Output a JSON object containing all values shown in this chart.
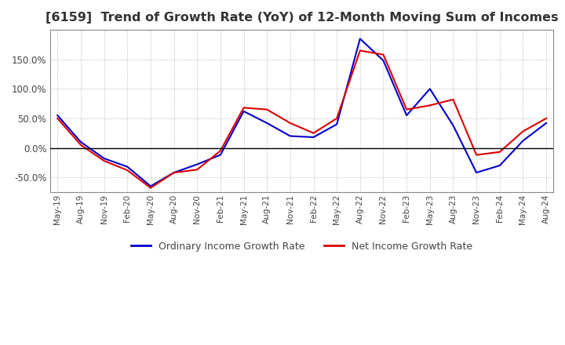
{
  "title": "[6159]  Trend of Growth Rate (YoY) of 12-Month Moving Sum of Incomes",
  "title_fontsize": 11.5,
  "ylim": [
    -75,
    200
  ],
  "yticks": [
    -50.0,
    0.0,
    50.0,
    100.0,
    150.0
  ],
  "background_color": "#ffffff",
  "grid_color": "#aaaaaa",
  "ordinary_color": "#0000cc",
  "net_color": "#dd0000",
  "legend_labels": [
    "Ordinary Income Growth Rate",
    "Net Income Growth Rate"
  ],
  "dates": [
    "May-19",
    "Aug-19",
    "Nov-19",
    "Feb-20",
    "May-20",
    "Aug-20",
    "Nov-20",
    "Feb-21",
    "May-21",
    "Aug-21",
    "Nov-21",
    "Feb-22",
    "May-22",
    "Aug-22",
    "Nov-22",
    "Feb-23",
    "May-23",
    "Aug-23",
    "Nov-23",
    "Feb-24",
    "May-24",
    "Aug-24"
  ],
  "ordinary_income": [
    55,
    10,
    -18,
    -32,
    -65,
    -42,
    -28,
    -12,
    62,
    42,
    20,
    18,
    40,
    185,
    148,
    55,
    100,
    38,
    -42,
    -30,
    12,
    42
  ],
  "net_income": [
    50,
    5,
    -22,
    -38,
    -68,
    -42,
    -37,
    -5,
    68,
    65,
    42,
    25,
    50,
    165,
    158,
    65,
    72,
    82,
    -12,
    -7,
    28,
    50
  ]
}
